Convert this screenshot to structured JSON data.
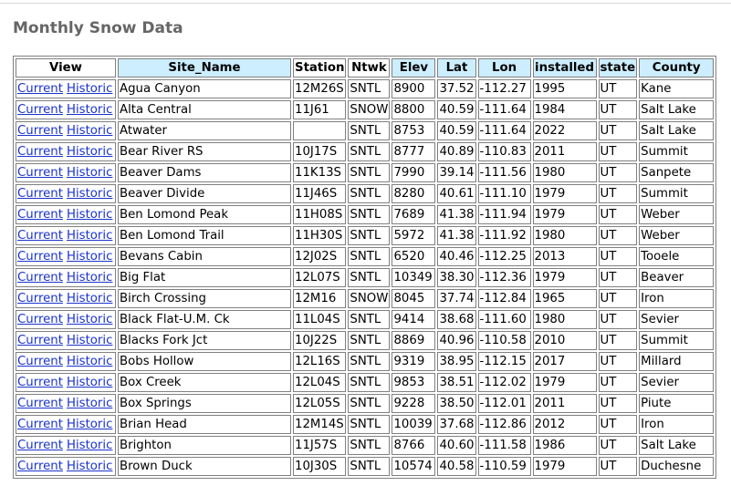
{
  "page": {
    "title": "Monthly Snow Data"
  },
  "table": {
    "headers": [
      "View",
      "Site_Name",
      "Station",
      "Ntwk",
      "Elev",
      "Lat",
      "Lon",
      "installed",
      "state",
      "County"
    ],
    "link_current": "Current",
    "link_historic": "Historic",
    "rows": [
      {
        "site": "Agua Canyon",
        "station": "12M26S",
        "ntwk": "SNTL",
        "elev": "8900",
        "lat": "37.52",
        "lon": "-112.27",
        "installed": "1995",
        "state": "UT",
        "county": "Kane"
      },
      {
        "site": "Alta Central",
        "station": "11J61",
        "ntwk": "SNOW",
        "elev": "8800",
        "lat": "40.59",
        "lon": "-111.64",
        "installed": "1984",
        "state": "UT",
        "county": "Salt Lake"
      },
      {
        "site": "Atwater",
        "station": "",
        "ntwk": "SNTL",
        "elev": "8753",
        "lat": "40.59",
        "lon": "-111.64",
        "installed": "2022",
        "state": "UT",
        "county": "Salt Lake"
      },
      {
        "site": "Bear River RS",
        "station": "10J17S",
        "ntwk": "SNTL",
        "elev": "8777",
        "lat": "40.89",
        "lon": "-110.83",
        "installed": "2011",
        "state": "UT",
        "county": "Summit"
      },
      {
        "site": "Beaver Dams",
        "station": "11K13S",
        "ntwk": "SNTL",
        "elev": "7990",
        "lat": "39.14",
        "lon": "-111.56",
        "installed": "1980",
        "state": "UT",
        "county": "Sanpete"
      },
      {
        "site": "Beaver Divide",
        "station": "11J46S",
        "ntwk": "SNTL",
        "elev": "8280",
        "lat": "40.61",
        "lon": "-111.10",
        "installed": "1979",
        "state": "UT",
        "county": "Summit"
      },
      {
        "site": "Ben Lomond Peak",
        "station": "11H08S",
        "ntwk": "SNTL",
        "elev": "7689",
        "lat": "41.38",
        "lon": "-111.94",
        "installed": "1979",
        "state": "UT",
        "county": "Weber"
      },
      {
        "site": "Ben Lomond Trail",
        "station": "11H30S",
        "ntwk": "SNTL",
        "elev": "5972",
        "lat": "41.38",
        "lon": "-111.92",
        "installed": "1980",
        "state": "UT",
        "county": "Weber"
      },
      {
        "site": "Bevans Cabin",
        "station": "12J02S",
        "ntwk": "SNTL",
        "elev": "6520",
        "lat": "40.46",
        "lon": "-112.25",
        "installed": "2013",
        "state": "UT",
        "county": "Tooele"
      },
      {
        "site": "Big Flat",
        "station": "12L07S",
        "ntwk": "SNTL",
        "elev": "10349",
        "lat": "38.30",
        "lon": "-112.36",
        "installed": "1979",
        "state": "UT",
        "county": "Beaver"
      },
      {
        "site": "Birch Crossing",
        "station": "12M16",
        "ntwk": "SNOW",
        "elev": "8045",
        "lat": "37.74",
        "lon": "-112.84",
        "installed": "1965",
        "state": "UT",
        "county": "Iron"
      },
      {
        "site": "Black Flat-U.M. Ck",
        "station": "11L04S",
        "ntwk": "SNTL",
        "elev": "9414",
        "lat": "38.68",
        "lon": "-111.60",
        "installed": "1980",
        "state": "UT",
        "county": "Sevier"
      },
      {
        "site": "Blacks Fork Jct",
        "station": "10J22S",
        "ntwk": "SNTL",
        "elev": "8869",
        "lat": "40.96",
        "lon": "-110.58",
        "installed": "2010",
        "state": "UT",
        "county": "Summit"
      },
      {
        "site": "Bobs Hollow",
        "station": "12L16S",
        "ntwk": "SNTL",
        "elev": "9319",
        "lat": "38.95",
        "lon": "-112.15",
        "installed": "2017",
        "state": "UT",
        "county": "Millard"
      },
      {
        "site": "Box Creek",
        "station": "12L04S",
        "ntwk": "SNTL",
        "elev": "9853",
        "lat": "38.51",
        "lon": "-112.02",
        "installed": "1979",
        "state": "UT",
        "county": "Sevier"
      },
      {
        "site": "Box Springs",
        "station": "12L05S",
        "ntwk": "SNTL",
        "elev": "9228",
        "lat": "38.50",
        "lon": "-112.01",
        "installed": "2011",
        "state": "UT",
        "county": "Piute"
      },
      {
        "site": "Brian Head",
        "station": "12M14S",
        "ntwk": "SNTL",
        "elev": "10039",
        "lat": "37.68",
        "lon": "-112.86",
        "installed": "2012",
        "state": "UT",
        "county": "Iron"
      },
      {
        "site": "Brighton",
        "station": "11J57S",
        "ntwk": "SNTL",
        "elev": "8766",
        "lat": "40.60",
        "lon": "-111.58",
        "installed": "1986",
        "state": "UT",
        "county": "Salt Lake"
      },
      {
        "site": "Brown Duck",
        "station": "10J30S",
        "ntwk": "SNTL",
        "elev": "10574",
        "lat": "40.58",
        "lon": "-110.59",
        "installed": "1979",
        "state": "UT",
        "county": "Duchesne"
      }
    ]
  }
}
